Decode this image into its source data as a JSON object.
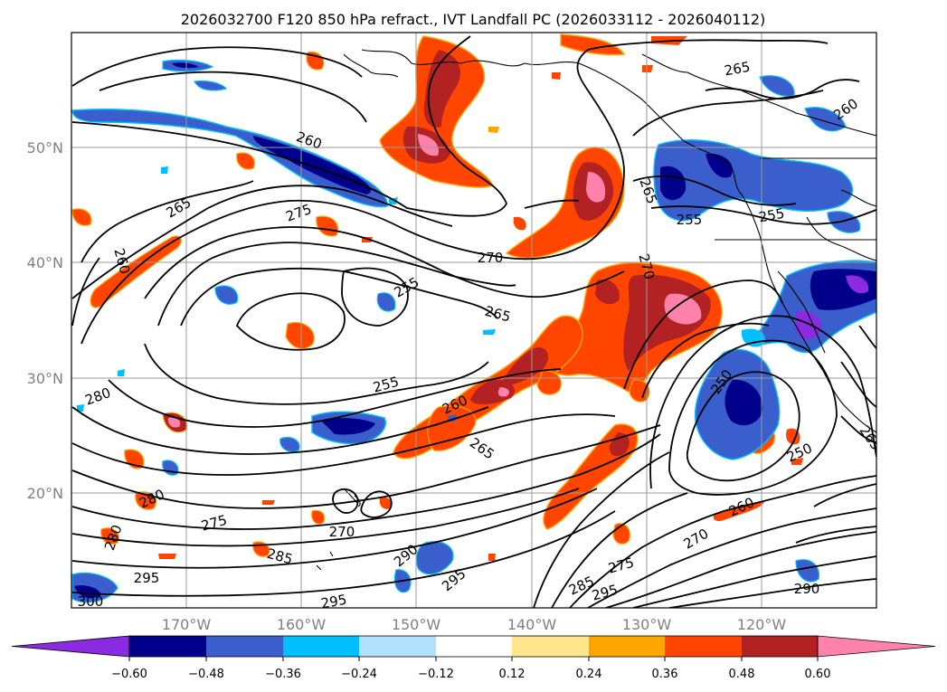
{
  "title": "2026032700 F120 850 hPa refract., IVT Landfall PC (2026033112 - 2026040112)",
  "latitude_labels": [
    "50°N",
    "40°N",
    "30°N",
    "20°N"
  ],
  "longitude_labels": [
    "170°W",
    "160°W",
    "150°W",
    "140°W",
    "130°W",
    "120°W"
  ],
  "colorbar": {
    "ticks": [
      "−0.60",
      "−0.48",
      "−0.36",
      "−0.24",
      "−0.12",
      "0.12",
      "0.24",
      "0.36",
      "0.48",
      "0.60"
    ],
    "colors": [
      "#8a2be2",
      "#00008b",
      "#3a5fcd",
      "#00bfff",
      "#b0e2ff",
      "#ffffff",
      "#ffe68c",
      "#ffa500",
      "#ff4500",
      "#b22222",
      "#ff82ab"
    ]
  },
  "contour_labels": [
    {
      "id": "c260a",
      "text": "260"
    },
    {
      "id": "c265a",
      "text": "265"
    },
    {
      "id": "c275a",
      "text": "275"
    },
    {
      "id": "c260b",
      "text": "260"
    },
    {
      "id": "c255a",
      "text": "255"
    },
    {
      "id": "c270a",
      "text": "270"
    },
    {
      "id": "c265b",
      "text": "265"
    },
    {
      "id": "c255b",
      "text": "255"
    },
    {
      "id": "c260c",
      "text": "260"
    },
    {
      "id": "c265c",
      "text": "265"
    },
    {
      "id": "c280a",
      "text": "280"
    },
    {
      "id": "c280b",
      "text": "280"
    },
    {
      "id": "c275b",
      "text": "275"
    },
    {
      "id": "c280c",
      "text": "280"
    },
    {
      "id": "c285a",
      "text": "285"
    },
    {
      "id": "c270b",
      "text": "270"
    },
    {
      "id": "c295a",
      "text": "295"
    },
    {
      "id": "c290a",
      "text": "290"
    },
    {
      "id": "c295b",
      "text": "295"
    },
    {
      "id": "c295c",
      "text": "295"
    },
    {
      "id": "c300a",
      "text": "300"
    },
    {
      "id": "c285b",
      "text": "285"
    },
    {
      "id": "c295d",
      "text": "295"
    },
    {
      "id": "c275c",
      "text": "275"
    },
    {
      "id": "c270c",
      "text": "270"
    },
    {
      "id": "c260d",
      "text": "260"
    },
    {
      "id": "c250a",
      "text": "250"
    },
    {
      "id": "c290b",
      "text": "290"
    },
    {
      "id": "c265d",
      "text": "265"
    },
    {
      "id": "c250b",
      "text": "250"
    },
    {
      "id": "c255c",
      "text": "255"
    },
    {
      "id": "c265e",
      "text": "265"
    },
    {
      "id": "c265f",
      "text": "265"
    },
    {
      "id": "c260e",
      "text": "260"
    },
    {
      "id": "c270d",
      "text": "270"
    },
    {
      "id": "c255d",
      "text": "255"
    }
  ]
}
